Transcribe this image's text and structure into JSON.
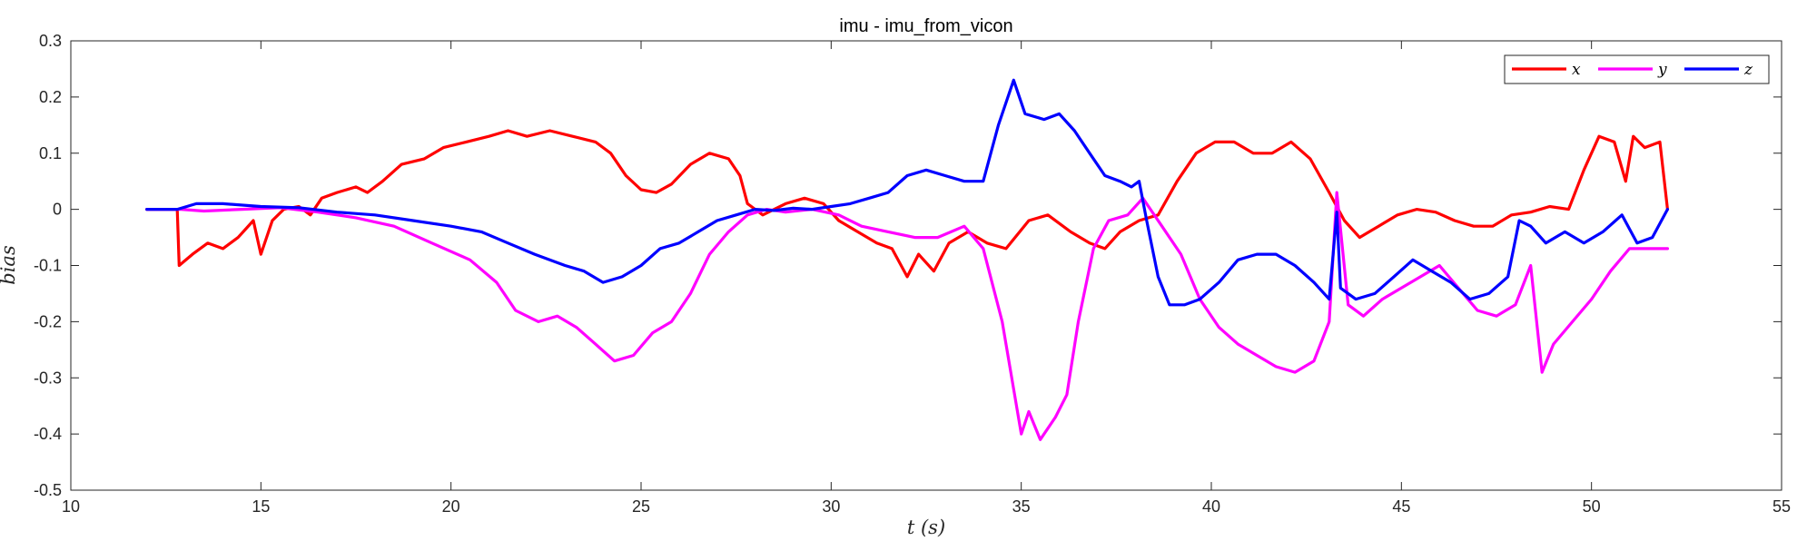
{
  "chart_data": {
    "type": "line",
    "title": "imu - imu_from_vicon",
    "xlabel": "t (s)",
    "ylabel": "bias",
    "xlim": [
      10,
      55
    ],
    "ylim": [
      -0.5,
      0.3
    ],
    "xticks": [
      10,
      15,
      20,
      25,
      30,
      35,
      40,
      45,
      50,
      55
    ],
    "yticks": [
      -0.5,
      -0.4,
      -0.3,
      -0.2,
      -0.1,
      0,
      0.1,
      0.2,
      0.3
    ],
    "grid": false,
    "legend_position": "top-right",
    "series": [
      {
        "name": "x",
        "color": "#ff0000",
        "points": [
          [
            12,
            0
          ],
          [
            12.8,
            0
          ],
          [
            12.85,
            -0.1
          ],
          [
            13.2,
            -0.08
          ],
          [
            13.6,
            -0.06
          ],
          [
            14,
            -0.07
          ],
          [
            14.4,
            -0.05
          ],
          [
            14.8,
            -0.02
          ],
          [
            15,
            -0.08
          ],
          [
            15.3,
            -0.02
          ],
          [
            15.6,
            0
          ],
          [
            16,
            0.005
          ],
          [
            16.3,
            -0.01
          ],
          [
            16.6,
            0.02
          ],
          [
            17,
            0.03
          ],
          [
            17.5,
            0.04
          ],
          [
            17.8,
            0.03
          ],
          [
            18.2,
            0.05
          ],
          [
            18.7,
            0.08
          ],
          [
            19.3,
            0.09
          ],
          [
            19.8,
            0.11
          ],
          [
            20.4,
            0.12
          ],
          [
            21,
            0.13
          ],
          [
            21.5,
            0.14
          ],
          [
            22,
            0.13
          ],
          [
            22.6,
            0.14
          ],
          [
            23.2,
            0.13
          ],
          [
            23.8,
            0.12
          ],
          [
            24.2,
            0.1
          ],
          [
            24.6,
            0.06
          ],
          [
            25,
            0.035
          ],
          [
            25.4,
            0.03
          ],
          [
            25.8,
            0.045
          ],
          [
            26.3,
            0.08
          ],
          [
            26.8,
            0.1
          ],
          [
            27.3,
            0.09
          ],
          [
            27.6,
            0.06
          ],
          [
            27.8,
            0.01
          ],
          [
            28.2,
            -0.01
          ],
          [
            28.8,
            0.01
          ],
          [
            29.3,
            0.02
          ],
          [
            29.8,
            0.01
          ],
          [
            30.2,
            -0.02
          ],
          [
            30.7,
            -0.04
          ],
          [
            31.2,
            -0.06
          ],
          [
            31.6,
            -0.07
          ],
          [
            32,
            -0.12
          ],
          [
            32.3,
            -0.08
          ],
          [
            32.7,
            -0.11
          ],
          [
            33.1,
            -0.06
          ],
          [
            33.6,
            -0.04
          ],
          [
            34.1,
            -0.06
          ],
          [
            34.6,
            -0.07
          ],
          [
            35.2,
            -0.02
          ],
          [
            35.7,
            -0.01
          ],
          [
            36.3,
            -0.04
          ],
          [
            36.8,
            -0.06
          ],
          [
            37.2,
            -0.07
          ],
          [
            37.6,
            -0.04
          ],
          [
            38.1,
            -0.02
          ],
          [
            38.6,
            -0.01
          ],
          [
            39.1,
            0.05
          ],
          [
            39.6,
            0.1
          ],
          [
            40.1,
            0.12
          ],
          [
            40.6,
            0.12
          ],
          [
            41.1,
            0.1
          ],
          [
            41.6,
            0.1
          ],
          [
            42.1,
            0.12
          ],
          [
            42.6,
            0.09
          ],
          [
            43.1,
            0.03
          ],
          [
            43.5,
            -0.02
          ],
          [
            43.9,
            -0.05
          ],
          [
            44.4,
            -0.03
          ],
          [
            44.9,
            -0.01
          ],
          [
            45.4,
            0
          ],
          [
            45.9,
            -0.005
          ],
          [
            46.4,
            -0.02
          ],
          [
            46.9,
            -0.03
          ],
          [
            47.4,
            -0.03
          ],
          [
            47.9,
            -0.01
          ],
          [
            48.4,
            -0.005
          ],
          [
            48.9,
            0.005
          ],
          [
            49.4,
            0
          ],
          [
            49.8,
            0.07
          ],
          [
            50.2,
            0.13
          ],
          [
            50.6,
            0.12
          ],
          [
            50.9,
            0.05
          ],
          [
            51.1,
            0.13
          ],
          [
            51.4,
            0.11
          ],
          [
            51.8,
            0.12
          ],
          [
            52,
            0
          ]
        ]
      },
      {
        "name": "y",
        "color": "#ff00ff",
        "points": [
          [
            12,
            0
          ],
          [
            12.9,
            0
          ],
          [
            13.5,
            -0.003
          ],
          [
            14.5,
            0
          ],
          [
            15.5,
            0.003
          ],
          [
            16.5,
            -0.005
          ],
          [
            17.5,
            -0.015
          ],
          [
            18.5,
            -0.03
          ],
          [
            19.5,
            -0.06
          ],
          [
            20.5,
            -0.09
          ],
          [
            21.2,
            -0.13
          ],
          [
            21.7,
            -0.18
          ],
          [
            22.3,
            -0.2
          ],
          [
            22.8,
            -0.19
          ],
          [
            23.3,
            -0.21
          ],
          [
            23.8,
            -0.24
          ],
          [
            24.3,
            -0.27
          ],
          [
            24.8,
            -0.26
          ],
          [
            25.3,
            -0.22
          ],
          [
            25.8,
            -0.2
          ],
          [
            26.3,
            -0.15
          ],
          [
            26.8,
            -0.08
          ],
          [
            27.3,
            -0.04
          ],
          [
            27.8,
            -0.01
          ],
          [
            28.3,
            0
          ],
          [
            28.8,
            -0.005
          ],
          [
            29.5,
            0
          ],
          [
            30.2,
            -0.01
          ],
          [
            30.8,
            -0.03
          ],
          [
            31.5,
            -0.04
          ],
          [
            32.2,
            -0.05
          ],
          [
            32.8,
            -0.05
          ],
          [
            33.5,
            -0.03
          ],
          [
            34,
            -0.07
          ],
          [
            34.5,
            -0.2
          ],
          [
            34.8,
            -0.32
          ],
          [
            35,
            -0.4
          ],
          [
            35.2,
            -0.36
          ],
          [
            35.5,
            -0.41
          ],
          [
            35.9,
            -0.37
          ],
          [
            36.2,
            -0.33
          ],
          [
            36.5,
            -0.2
          ],
          [
            36.9,
            -0.07
          ],
          [
            37.3,
            -0.02
          ],
          [
            37.8,
            -0.01
          ],
          [
            38.2,
            0.02
          ],
          [
            38.7,
            -0.03
          ],
          [
            39.2,
            -0.08
          ],
          [
            39.7,
            -0.16
          ],
          [
            40.2,
            -0.21
          ],
          [
            40.7,
            -0.24
          ],
          [
            41.2,
            -0.26
          ],
          [
            41.7,
            -0.28
          ],
          [
            42.2,
            -0.29
          ],
          [
            42.7,
            -0.27
          ],
          [
            43.1,
            -0.2
          ],
          [
            43.3,
            0.03
          ],
          [
            43.6,
            -0.17
          ],
          [
            44,
            -0.19
          ],
          [
            44.5,
            -0.16
          ],
          [
            45,
            -0.14
          ],
          [
            45.5,
            -0.12
          ],
          [
            46,
            -0.1
          ],
          [
            46.5,
            -0.14
          ],
          [
            47,
            -0.18
          ],
          [
            47.5,
            -0.19
          ],
          [
            48,
            -0.17
          ],
          [
            48.4,
            -0.1
          ],
          [
            48.7,
            -0.29
          ],
          [
            49,
            -0.24
          ],
          [
            49.5,
            -0.2
          ],
          [
            50,
            -0.16
          ],
          [
            50.5,
            -0.11
          ],
          [
            51,
            -0.07
          ],
          [
            51.5,
            -0.07
          ],
          [
            52,
            -0.07
          ]
        ]
      },
      {
        "name": "z",
        "color": "#0000ff",
        "points": [
          [
            12,
            0
          ],
          [
            12.8,
            0
          ],
          [
            13.3,
            0.01
          ],
          [
            14,
            0.01
          ],
          [
            15,
            0.005
          ],
          [
            16,
            0.003
          ],
          [
            17,
            -0.005
          ],
          [
            18,
            -0.01
          ],
          [
            19,
            -0.02
          ],
          [
            20,
            -0.03
          ],
          [
            20.8,
            -0.04
          ],
          [
            21.5,
            -0.06
          ],
          [
            22.2,
            -0.08
          ],
          [
            23,
            -0.1
          ],
          [
            23.5,
            -0.11
          ],
          [
            24,
            -0.13
          ],
          [
            24.5,
            -0.12
          ],
          [
            25,
            -0.1
          ],
          [
            25.5,
            -0.07
          ],
          [
            26,
            -0.06
          ],
          [
            26.5,
            -0.04
          ],
          [
            27,
            -0.02
          ],
          [
            27.5,
            -0.01
          ],
          [
            28,
            0
          ],
          [
            28.5,
            -0.002
          ],
          [
            29,
            0.002
          ],
          [
            29.5,
            0
          ],
          [
            30,
            0.005
          ],
          [
            30.5,
            0.01
          ],
          [
            31,
            0.02
          ],
          [
            31.5,
            0.03
          ],
          [
            32,
            0.06
          ],
          [
            32.5,
            0.07
          ],
          [
            33,
            0.06
          ],
          [
            33.5,
            0.05
          ],
          [
            34,
            0.05
          ],
          [
            34.4,
            0.15
          ],
          [
            34.8,
            0.23
          ],
          [
            35.1,
            0.17
          ],
          [
            35.6,
            0.16
          ],
          [
            36,
            0.17
          ],
          [
            36.4,
            0.14
          ],
          [
            36.8,
            0.1
          ],
          [
            37.2,
            0.06
          ],
          [
            37.6,
            0.05
          ],
          [
            37.9,
            0.04
          ],
          [
            38.1,
            0.05
          ],
          [
            38.3,
            -0.02
          ],
          [
            38.6,
            -0.12
          ],
          [
            38.9,
            -0.17
          ],
          [
            39.3,
            -0.17
          ],
          [
            39.7,
            -0.16
          ],
          [
            40.2,
            -0.13
          ],
          [
            40.7,
            -0.09
          ],
          [
            41.2,
            -0.08
          ],
          [
            41.7,
            -0.08
          ],
          [
            42.2,
            -0.1
          ],
          [
            42.7,
            -0.13
          ],
          [
            43.1,
            -0.16
          ],
          [
            43.3,
            -0.005
          ],
          [
            43.4,
            -0.14
          ],
          [
            43.8,
            -0.16
          ],
          [
            44.3,
            -0.15
          ],
          [
            44.8,
            -0.12
          ],
          [
            45.3,
            -0.09
          ],
          [
            45.8,
            -0.11
          ],
          [
            46.3,
            -0.13
          ],
          [
            46.8,
            -0.16
          ],
          [
            47.3,
            -0.15
          ],
          [
            47.8,
            -0.12
          ],
          [
            48.1,
            -0.02
          ],
          [
            48.4,
            -0.03
          ],
          [
            48.8,
            -0.06
          ],
          [
            49.3,
            -0.04
          ],
          [
            49.8,
            -0.06
          ],
          [
            50.3,
            -0.04
          ],
          [
            50.8,
            -0.01
          ],
          [
            51.2,
            -0.06
          ],
          [
            51.6,
            -0.05
          ],
          [
            52,
            0
          ]
        ]
      }
    ]
  }
}
